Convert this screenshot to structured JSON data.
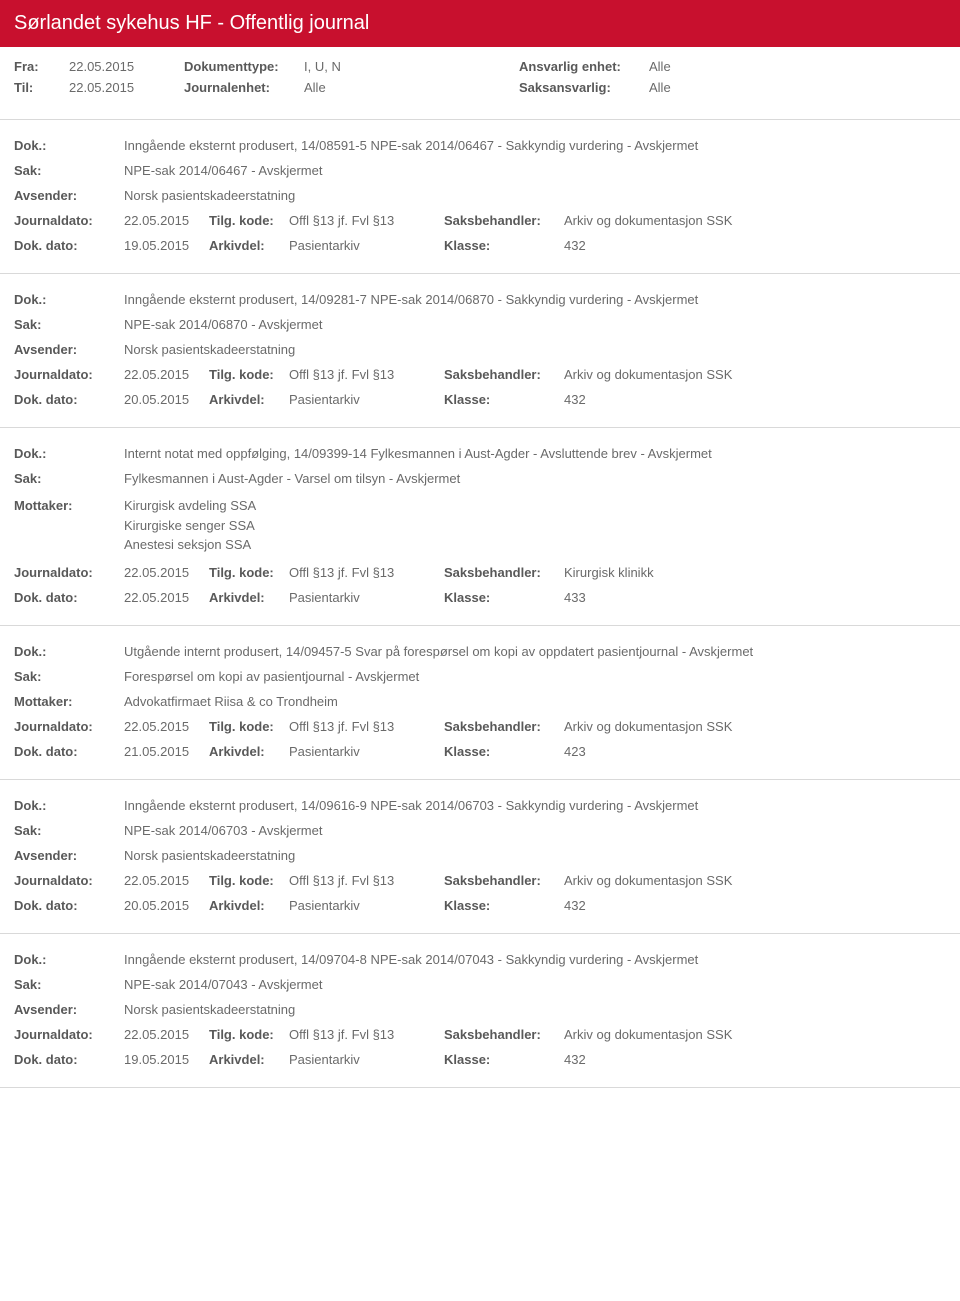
{
  "header": {
    "title": "Sørlandet sykehus HF - Offentlig journal"
  },
  "filters": {
    "fra_label": "Fra:",
    "fra_value": "22.05.2015",
    "til_label": "Til:",
    "til_value": "22.05.2015",
    "doktype_label": "Dokumenttype:",
    "doktype_value": "I, U, N",
    "journalenhet_label": "Journalenhet:",
    "journalenhet_value": "Alle",
    "ansvarlig_label": "Ansvarlig enhet:",
    "ansvarlig_value": "Alle",
    "saksansvarlig_label": "Saksansvarlig:",
    "saksansvarlig_value": "Alle"
  },
  "labels": {
    "dok": "Dok.:",
    "sak": "Sak:",
    "avsender": "Avsender:",
    "mottaker": "Mottaker:",
    "journaldato": "Journaldato:",
    "tilgkode": "Tilg. kode:",
    "saksbehandler": "Saksbehandler:",
    "dokdato": "Dok. dato:",
    "arkivdel": "Arkivdel:",
    "klasse": "Klasse:"
  },
  "entries": [
    {
      "dok": "Inngående eksternt produsert, 14/08591-5 NPE-sak 2014/06467 - Sakkyndig vurdering - Avskjermet",
      "sak": "NPE-sak 2014/06467 - Avskjermet",
      "party_label": "Avsender:",
      "party": [
        "Norsk pasientskadeerstatning"
      ],
      "journaldato": "22.05.2015",
      "tilgkode": "Offl §13 jf. Fvl §13",
      "saksbehandler": "Arkiv og dokumentasjon SSK",
      "dokdato": "19.05.2015",
      "arkivdel": "Pasientarkiv",
      "klasse": "432"
    },
    {
      "dok": "Inngående eksternt produsert, 14/09281-7 NPE-sak 2014/06870 - Sakkyndig vurdering - Avskjermet",
      "sak": "NPE-sak 2014/06870 - Avskjermet",
      "party_label": "Avsender:",
      "party": [
        "Norsk pasientskadeerstatning"
      ],
      "journaldato": "22.05.2015",
      "tilgkode": "Offl §13 jf. Fvl §13",
      "saksbehandler": "Arkiv og dokumentasjon SSK",
      "dokdato": "20.05.2015",
      "arkivdel": "Pasientarkiv",
      "klasse": "432"
    },
    {
      "dok": "Internt notat med oppfølging, 14/09399-14 Fylkesmannen i Aust-Agder - Avsluttende brev - Avskjermet",
      "sak": "Fylkesmannen i Aust-Agder - Varsel om tilsyn - Avskjermet",
      "party_label": "Mottaker:",
      "party": [
        "Kirurgisk avdeling SSA",
        "Kirurgiske senger SSA",
        "Anestesi seksjon SSA"
      ],
      "journaldato": "22.05.2015",
      "tilgkode": "Offl §13 jf. Fvl §13",
      "saksbehandler": "Kirurgisk klinikk",
      "dokdato": "22.05.2015",
      "arkivdel": "Pasientarkiv",
      "klasse": "433"
    },
    {
      "dok": "Utgående internt produsert, 14/09457-5 Svar på forespørsel om kopi av oppdatert pasientjournal - Avskjermet",
      "sak": "Forespørsel om kopi av pasientjournal - Avskjermet",
      "party_label": "Mottaker:",
      "party": [
        "Advokatfirmaet Riisa & co Trondheim"
      ],
      "journaldato": "22.05.2015",
      "tilgkode": "Offl §13 jf. Fvl §13",
      "saksbehandler": "Arkiv og dokumentasjon SSK",
      "dokdato": "21.05.2015",
      "arkivdel": "Pasientarkiv",
      "klasse": "423"
    },
    {
      "dok": "Inngående eksternt produsert, 14/09616-9 NPE-sak 2014/06703 - Sakkyndig vurdering - Avskjermet",
      "sak": "NPE-sak 2014/06703 - Avskjermet",
      "party_label": "Avsender:",
      "party": [
        "Norsk pasientskadeerstatning"
      ],
      "journaldato": "22.05.2015",
      "tilgkode": "Offl §13 jf. Fvl §13",
      "saksbehandler": "Arkiv og dokumentasjon SSK",
      "dokdato": "20.05.2015",
      "arkivdel": "Pasientarkiv",
      "klasse": "432"
    },
    {
      "dok": "Inngående eksternt produsert, 14/09704-8 NPE-sak 2014/07043 - Sakkyndig vurdering - Avskjermet",
      "sak": "NPE-sak 2014/07043 - Avskjermet",
      "party_label": "Avsender:",
      "party": [
        "Norsk pasientskadeerstatning"
      ],
      "journaldato": "22.05.2015",
      "tilgkode": "Offl §13 jf. Fvl §13",
      "saksbehandler": "Arkiv og dokumentasjon SSK",
      "dokdato": "19.05.2015",
      "arkivdel": "Pasientarkiv",
      "klasse": "432"
    }
  ]
}
